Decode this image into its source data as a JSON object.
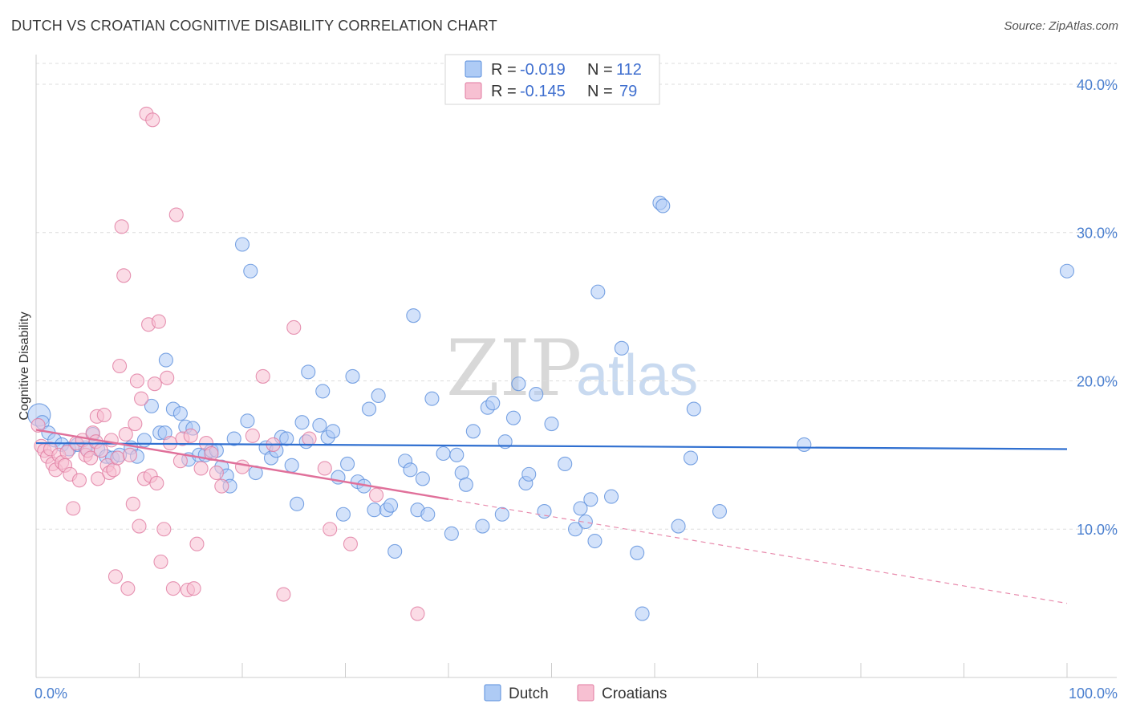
{
  "title": "DUTCH VS CROATIAN COGNITIVE DISABILITY CORRELATION CHART",
  "source": "Source: ZipAtlas.com",
  "watermark": {
    "zip": "ZIP",
    "atlas": "atlas"
  },
  "legend": {
    "r_label": "R =",
    "n_label": "N =",
    "items": [
      {
        "r": "-0.019",
        "n": "112",
        "fill": "#aecbf5",
        "stroke": "#5b8fdc"
      },
      {
        "r": "-0.145",
        "n": "79",
        "fill": "#f7c0d2",
        "stroke": "#e07aa0"
      }
    ]
  },
  "bottom_legend": [
    {
      "name": "Dutch",
      "fill": "#aecbf5",
      "stroke": "#5b8fdc"
    },
    {
      "name": "Croatians",
      "fill": "#f7c0d2",
      "stroke": "#e07aa0"
    }
  ],
  "chart_data": {
    "type": "scatter",
    "title": "DUTCH VS CROATIAN COGNITIVE DISABILITY CORRELATION CHART",
    "xlabel": "",
    "ylabel": "Cognitive Disability",
    "xlim": [
      0,
      100
    ],
    "ylim": [
      0,
      42
    ],
    "x_tick_labels": [
      {
        "value": 0,
        "label": "0.0%"
      },
      {
        "value": 100,
        "label": "100.0%"
      }
    ],
    "y_tick_labels": [
      {
        "value": 10,
        "label": "10.0%"
      },
      {
        "value": 20,
        "label": "20.0%"
      },
      {
        "value": 30,
        "label": "30.0%"
      },
      {
        "value": 40,
        "label": "40.0%"
      }
    ],
    "grid": "horizontal dashed",
    "legend_position": "top-center",
    "series": [
      {
        "name": "Dutch",
        "color": "#5b8fdc",
        "fill": "#aecbf5",
        "trend": {
          "x0": 0,
          "y0": 15.8,
          "x1": 100,
          "y1": 15.4,
          "dashed_from": null
        },
        "points": [
          [
            0.3,
            17.7
          ],
          [
            0.6,
            17.2
          ],
          [
            1.2,
            16.5
          ],
          [
            1.8,
            16.0
          ],
          [
            2.5,
            15.7
          ],
          [
            3.2,
            15.4
          ],
          [
            4.0,
            15.7
          ],
          [
            4.8,
            15.5
          ],
          [
            5.5,
            16.4
          ],
          [
            6.0,
            15.4
          ],
          [
            6.8,
            14.9
          ],
          [
            7.4,
            14.8
          ],
          [
            8.1,
            15.0
          ],
          [
            9.2,
            15.5
          ],
          [
            9.8,
            14.9
          ],
          [
            10.5,
            16.0
          ],
          [
            11.2,
            18.3
          ],
          [
            12.0,
            16.5
          ],
          [
            12.5,
            16.5
          ],
          [
            12.6,
            21.4
          ],
          [
            13.3,
            18.1
          ],
          [
            14.0,
            17.8
          ],
          [
            14.5,
            16.9
          ],
          [
            14.8,
            14.7
          ],
          [
            15.2,
            16.8
          ],
          [
            15.8,
            15.0
          ],
          [
            16.4,
            15.0
          ],
          [
            17.0,
            15.3
          ],
          [
            17.5,
            15.3
          ],
          [
            18.0,
            14.2
          ],
          [
            18.5,
            13.6
          ],
          [
            18.8,
            12.9
          ],
          [
            19.2,
            16.1
          ],
          [
            20.0,
            29.2
          ],
          [
            20.5,
            17.3
          ],
          [
            20.8,
            27.4
          ],
          [
            21.3,
            13.8
          ],
          [
            22.3,
            15.5
          ],
          [
            22.8,
            14.8
          ],
          [
            23.3,
            15.3
          ],
          [
            23.8,
            16.2
          ],
          [
            24.3,
            16.1
          ],
          [
            24.8,
            14.3
          ],
          [
            25.3,
            11.7
          ],
          [
            25.8,
            17.2
          ],
          [
            26.2,
            15.9
          ],
          [
            26.4,
            20.6
          ],
          [
            27.5,
            17.0
          ],
          [
            27.8,
            19.3
          ],
          [
            28.3,
            16.2
          ],
          [
            28.8,
            16.6
          ],
          [
            29.3,
            13.5
          ],
          [
            29.8,
            11.0
          ],
          [
            30.2,
            14.4
          ],
          [
            30.7,
            20.3
          ],
          [
            31.2,
            13.2
          ],
          [
            31.8,
            12.9
          ],
          [
            32.3,
            18.1
          ],
          [
            32.8,
            11.3
          ],
          [
            33.2,
            19.0
          ],
          [
            34.0,
            11.3
          ],
          [
            34.4,
            11.6
          ],
          [
            34.8,
            8.5
          ],
          [
            35.8,
            14.6
          ],
          [
            36.3,
            14.0
          ],
          [
            36.6,
            24.4
          ],
          [
            37.0,
            11.3
          ],
          [
            37.5,
            13.4
          ],
          [
            38.0,
            11.0
          ],
          [
            38.4,
            18.8
          ],
          [
            39.5,
            15.1
          ],
          [
            40.3,
            9.7
          ],
          [
            40.8,
            15.0
          ],
          [
            41.3,
            13.8
          ],
          [
            41.7,
            13.0
          ],
          [
            42.4,
            16.6
          ],
          [
            43.3,
            10.2
          ],
          [
            43.8,
            18.2
          ],
          [
            44.3,
            18.5
          ],
          [
            45.2,
            11.0
          ],
          [
            45.5,
            15.9
          ],
          [
            46.3,
            17.5
          ],
          [
            46.8,
            19.8
          ],
          [
            47.5,
            13.1
          ],
          [
            47.8,
            13.7
          ],
          [
            48.5,
            19.1
          ],
          [
            49.3,
            11.2
          ],
          [
            50.0,
            17.1
          ],
          [
            51.3,
            14.4
          ],
          [
            52.3,
            10.0
          ],
          [
            52.8,
            11.4
          ],
          [
            53.3,
            10.5
          ],
          [
            53.8,
            12.0
          ],
          [
            54.2,
            9.2
          ],
          [
            54.5,
            26.0
          ],
          [
            55.8,
            12.2
          ],
          [
            56.8,
            22.2
          ],
          [
            58.3,
            8.4
          ],
          [
            58.8,
            4.3
          ],
          [
            60.5,
            32.0
          ],
          [
            60.8,
            31.8
          ],
          [
            62.3,
            10.2
          ],
          [
            63.5,
            14.8
          ],
          [
            63.8,
            18.1
          ],
          [
            66.3,
            11.2
          ],
          [
            74.5,
            15.7
          ],
          [
            100.0,
            27.4
          ]
        ]
      },
      {
        "name": "Croatians",
        "color": "#e07aa0",
        "fill": "#f7c0d2",
        "trend": {
          "x0": 0,
          "y0": 16.7,
          "x1": 100,
          "y1": 5.0,
          "dashed_from": 40
        },
        "points": [
          [
            0.2,
            17.0
          ],
          [
            0.5,
            15.6
          ],
          [
            0.8,
            15.3
          ],
          [
            1.1,
            14.9
          ],
          [
            1.4,
            15.4
          ],
          [
            1.6,
            14.4
          ],
          [
            1.9,
            14.0
          ],
          [
            2.2,
            15.0
          ],
          [
            2.5,
            14.5
          ],
          [
            2.8,
            14.3
          ],
          [
            3.0,
            15.2
          ],
          [
            3.3,
            13.7
          ],
          [
            3.6,
            11.4
          ],
          [
            3.9,
            15.8
          ],
          [
            4.2,
            13.3
          ],
          [
            4.5,
            16.0
          ],
          [
            4.8,
            15.0
          ],
          [
            5.0,
            15.3
          ],
          [
            5.3,
            14.8
          ],
          [
            5.5,
            16.5
          ],
          [
            5.8,
            15.9
          ],
          [
            5.9,
            17.6
          ],
          [
            6.0,
            13.4
          ],
          [
            6.3,
            15.3
          ],
          [
            6.6,
            17.7
          ],
          [
            6.9,
            14.3
          ],
          [
            7.1,
            13.8
          ],
          [
            7.3,
            16.0
          ],
          [
            7.5,
            14.0
          ],
          [
            7.7,
            6.8
          ],
          [
            7.9,
            14.8
          ],
          [
            8.1,
            21.0
          ],
          [
            8.3,
            30.4
          ],
          [
            8.5,
            27.1
          ],
          [
            8.7,
            16.4
          ],
          [
            8.9,
            6.0
          ],
          [
            9.1,
            15.0
          ],
          [
            9.4,
            11.7
          ],
          [
            9.6,
            17.1
          ],
          [
            9.8,
            20.0
          ],
          [
            10.0,
            10.2
          ],
          [
            10.2,
            18.8
          ],
          [
            10.5,
            13.4
          ],
          [
            10.7,
            38.0
          ],
          [
            10.9,
            23.8
          ],
          [
            11.1,
            13.6
          ],
          [
            11.3,
            37.6
          ],
          [
            11.5,
            19.8
          ],
          [
            11.7,
            13.1
          ],
          [
            11.9,
            24.0
          ],
          [
            12.1,
            7.8
          ],
          [
            12.4,
            10.0
          ],
          [
            12.7,
            20.2
          ],
          [
            13.0,
            15.8
          ],
          [
            13.3,
            6.0
          ],
          [
            13.6,
            31.2
          ],
          [
            14.0,
            14.6
          ],
          [
            14.2,
            16.1
          ],
          [
            14.7,
            5.9
          ],
          [
            15.0,
            16.3
          ],
          [
            15.3,
            6.0
          ],
          [
            15.6,
            9.0
          ],
          [
            16.0,
            14.1
          ],
          [
            16.5,
            15.8
          ],
          [
            17.0,
            15.1
          ],
          [
            17.5,
            13.8
          ],
          [
            18.0,
            12.9
          ],
          [
            20.0,
            14.2
          ],
          [
            21.0,
            16.3
          ],
          [
            22.0,
            20.3
          ],
          [
            23.0,
            15.7
          ],
          [
            24.0,
            5.6
          ],
          [
            25.0,
            23.6
          ],
          [
            26.5,
            16.1
          ],
          [
            28.0,
            14.1
          ],
          [
            28.5,
            10.0
          ],
          [
            30.5,
            9.0
          ],
          [
            33.0,
            12.3
          ],
          [
            37.0,
            4.3
          ]
        ]
      }
    ]
  }
}
